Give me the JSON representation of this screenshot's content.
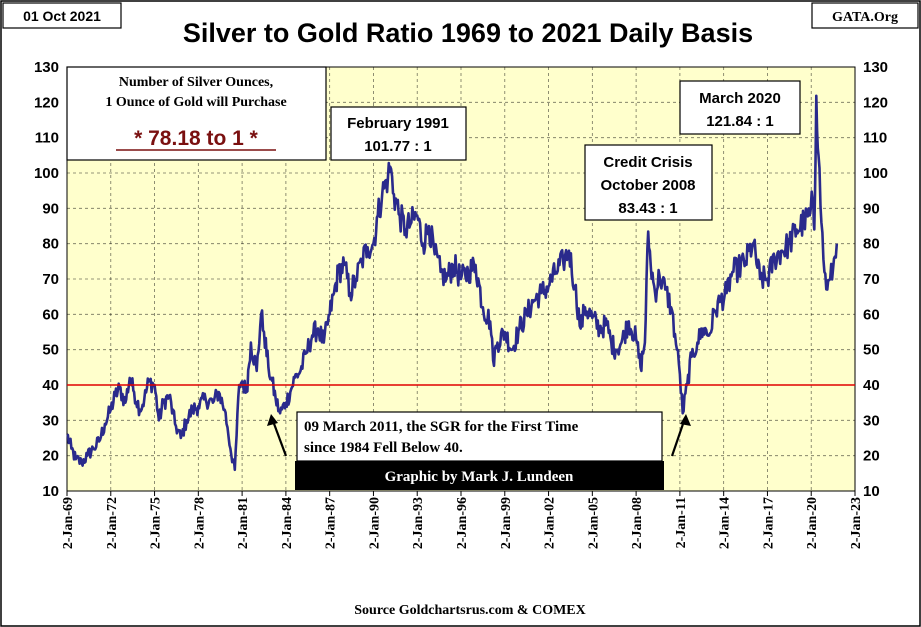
{
  "header": {
    "date": "01 Oct 2021",
    "title": "Silver to Gold Ratio 1969 to 2021 Daily Basis",
    "site": "GATA.Org"
  },
  "info_box": {
    "line1": "Number of Silver Ounces,",
    "line2": "1 Ounce of Gold will Purchase",
    "ratio": "* 78.18 to 1 *"
  },
  "credit": "Graphic by Mark J. Lundeen",
  "source": "Source Goldchartsrus.com & COMEX",
  "colors": {
    "plot_bg": "#ffffcc",
    "line": "#2a2a8c",
    "ref_line": "#e00000",
    "ratio_text": "#7a1010",
    "credit_bg": "#000000"
  },
  "chart_data": {
    "type": "line",
    "title": "Silver to Gold Ratio 1969 to 2021 Daily Basis",
    "xlabel": "",
    "ylabel": "",
    "ylim": [
      10,
      130
    ],
    "yticks": [
      10,
      20,
      30,
      40,
      50,
      60,
      70,
      80,
      90,
      100,
      110,
      120,
      130
    ],
    "ytick_labels": [
      "10",
      "20",
      "30",
      "40",
      "50",
      "60",
      "70",
      "80",
      "90",
      "100",
      "110",
      "120",
      "130"
    ],
    "xlim": [
      1969.0,
      2023.0
    ],
    "xticks": [
      1969,
      1972,
      1975,
      1978,
      1981,
      1984,
      1987,
      1990,
      1993,
      1996,
      1999,
      2002,
      2005,
      2008,
      2011,
      2014,
      2017,
      2020,
      2023
    ],
    "xtick_labels": [
      "2-Jan-69",
      "2-Jan-72",
      "2-Jan-75",
      "2-Jan-78",
      "2-Jan-81",
      "2-Jan-84",
      "2-Jan-87",
      "2-Jan-90",
      "2-Jan-93",
      "2-Jan-96",
      "2-Jan-99",
      "2-Jan-02",
      "2-Jan-05",
      "2-Jan-08",
      "2-Jan-11",
      "2-Jan-14",
      "2-Jan-17",
      "2-Jan-20",
      "2-Jan-23"
    ],
    "reference_line": {
      "y": 40,
      "label": ""
    },
    "series": [
      {
        "name": "Silver to Gold Ratio",
        "x": [
          1969.0,
          1969.3,
          1969.6,
          1970.0,
          1970.4,
          1970.8,
          1971.2,
          1971.6,
          1972.0,
          1972.3,
          1972.6,
          1973.0,
          1973.3,
          1973.6,
          1974.0,
          1974.3,
          1974.6,
          1975.0,
          1975.3,
          1975.6,
          1976.0,
          1976.4,
          1976.8,
          1977.2,
          1977.6,
          1978.0,
          1978.5,
          1979.0,
          1979.4,
          1979.8,
          1980.0,
          1980.2,
          1980.5,
          1980.8,
          1981.0,
          1981.3,
          1981.6,
          1982.0,
          1982.3,
          1982.5,
          1982.8,
          1983.0,
          1983.3,
          1983.6,
          1984.0,
          1984.3,
          1984.6,
          1985.0,
          1985.4,
          1985.8,
          1986.2,
          1986.6,
          1987.0,
          1987.3,
          1987.6,
          1988.0,
          1988.4,
          1988.8,
          1989.2,
          1989.6,
          1990.0,
          1990.3,
          1990.6,
          1991.0,
          1991.15,
          1991.4,
          1991.8,
          1992.2,
          1992.6,
          1993.0,
          1993.4,
          1993.8,
          1994.2,
          1994.6,
          1995.0,
          1995.5,
          1996.0,
          1996.5,
          1997.0,
          1997.5,
          1998.0,
          1998.2,
          1998.5,
          1999.0,
          1999.5,
          2000.0,
          2000.5,
          2001.0,
          2001.5,
          2002.0,
          2002.5,
          2003.0,
          2003.4,
          2003.8,
          2004.2,
          2004.5,
          2005.0,
          2005.5,
          2006.0,
          2006.3,
          2006.6,
          2007.0,
          2007.5,
          2008.0,
          2008.3,
          2008.6,
          2008.83,
          2009.0,
          2009.3,
          2009.6,
          2010.0,
          2010.4,
          2010.8,
          2011.0,
          2011.19,
          2011.5,
          2011.8,
          2012.2,
          2012.6,
          2013.0,
          2013.4,
          2013.8,
          2014.2,
          2014.6,
          2015.0,
          2015.5,
          2016.0,
          2016.5,
          2017.0,
          2017.5,
          2018.0,
          2018.5,
          2019.0,
          2019.5,
          2019.9,
          2020.1,
          2020.21,
          2020.35,
          2020.5,
          2020.7,
          2020.9,
          2021.1,
          2021.3,
          2021.5,
          2021.75
        ],
        "values": [
          26,
          22,
          19,
          18,
          20,
          22,
          24,
          29,
          33,
          37,
          39,
          35,
          42,
          38,
          33,
          36,
          41,
          40,
          30,
          35,
          37,
          29,
          25,
          30,
          33,
          34,
          36,
          35,
          38,
          33,
          28,
          22,
          16,
          40,
          41,
          38,
          52,
          44,
          60,
          55,
          45,
          42,
          36,
          32,
          35,
          38,
          42,
          44,
          49,
          54,
          56,
          52,
          60,
          66,
          72,
          74,
          66,
          70,
          75,
          79,
          80,
          88,
          94,
          99,
          101.77,
          94,
          88,
          84,
          86,
          88,
          80,
          85,
          77,
          72,
          70,
          74,
          70,
          72,
          74,
          62,
          58,
          47,
          52,
          55,
          50,
          56,
          60,
          64,
          66,
          68,
          72,
          75,
          78,
          68,
          56,
          62,
          59,
          56,
          57,
          52,
          50,
          52,
          58,
          53,
          45,
          52,
          83.43,
          74,
          66,
          71,
          67,
          62,
          50,
          43,
          32,
          40,
          48,
          52,
          56,
          54,
          61,
          64,
          66,
          72,
          73,
          75,
          80,
          70,
          70,
          76,
          78,
          80,
          84,
          86,
          88,
          92,
          84,
          121.84,
          105,
          86,
          72,
          67,
          70,
          73,
          80
        ]
      }
    ],
    "annotations": [
      {
        "lines": [
          "February 1991",
          "101.77 : 1"
        ]
      },
      {
        "lines": [
          "Credit Crisis",
          "October 2008",
          "83.43 : 1"
        ]
      },
      {
        "lines": [
          "March 2020",
          "121.84 : 1"
        ]
      },
      {
        "lines": [
          "09 March 2011, the SGR for the First Time",
          "since 1984 Fell Below  40."
        ]
      }
    ]
  }
}
